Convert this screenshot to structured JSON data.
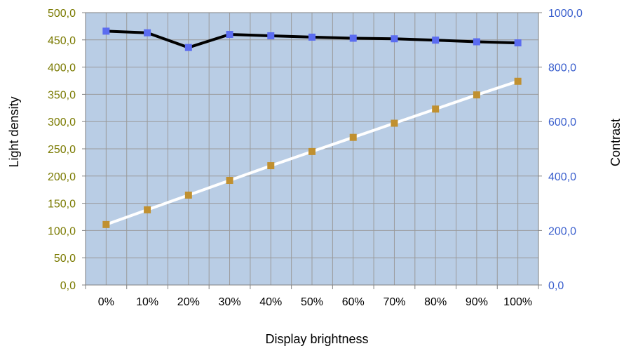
{
  "chart_data": {
    "type": "line",
    "title": "",
    "xlabel": "Display brightness",
    "ylabel_left": "Light density",
    "ylabel_right": "Contrast",
    "categories": [
      "0%",
      "10%",
      "20%",
      "30%",
      "40%",
      "50%",
      "60%",
      "70%",
      "80%",
      "90%",
      "100%"
    ],
    "left_axis": {
      "ylim": [
        0,
        500
      ],
      "ticks": [
        "0,0",
        "50,0",
        "100,0",
        "150,0",
        "200,0",
        "250,0",
        "300,0",
        "350,0",
        "400,0",
        "450,0",
        "500,0"
      ],
      "tick_color": "#7a7a00"
    },
    "right_axis": {
      "ylim": [
        0,
        1000
      ],
      "ticks": [
        "0,0",
        "200,0",
        "400,0",
        "600,0",
        "800,0",
        "1000,0"
      ],
      "tick_color": "#3a5fcd"
    },
    "grid": true,
    "legend": "none",
    "plot_background": "#b9cde5",
    "series": [
      {
        "axis": "left",
        "line_color": "#ffffff",
        "marker_color": "#c09030",
        "marker": "square",
        "values": [
          111,
          138,
          165,
          192,
          219,
          245,
          271,
          297,
          323,
          349,
          374
        ]
      },
      {
        "axis": "right",
        "line_color": "#000000",
        "marker_color": "#5b6cf0",
        "marker": "square",
        "values": [
          932,
          926,
          872,
          920,
          915,
          910,
          906,
          904,
          899,
          893,
          889
        ]
      }
    ]
  }
}
